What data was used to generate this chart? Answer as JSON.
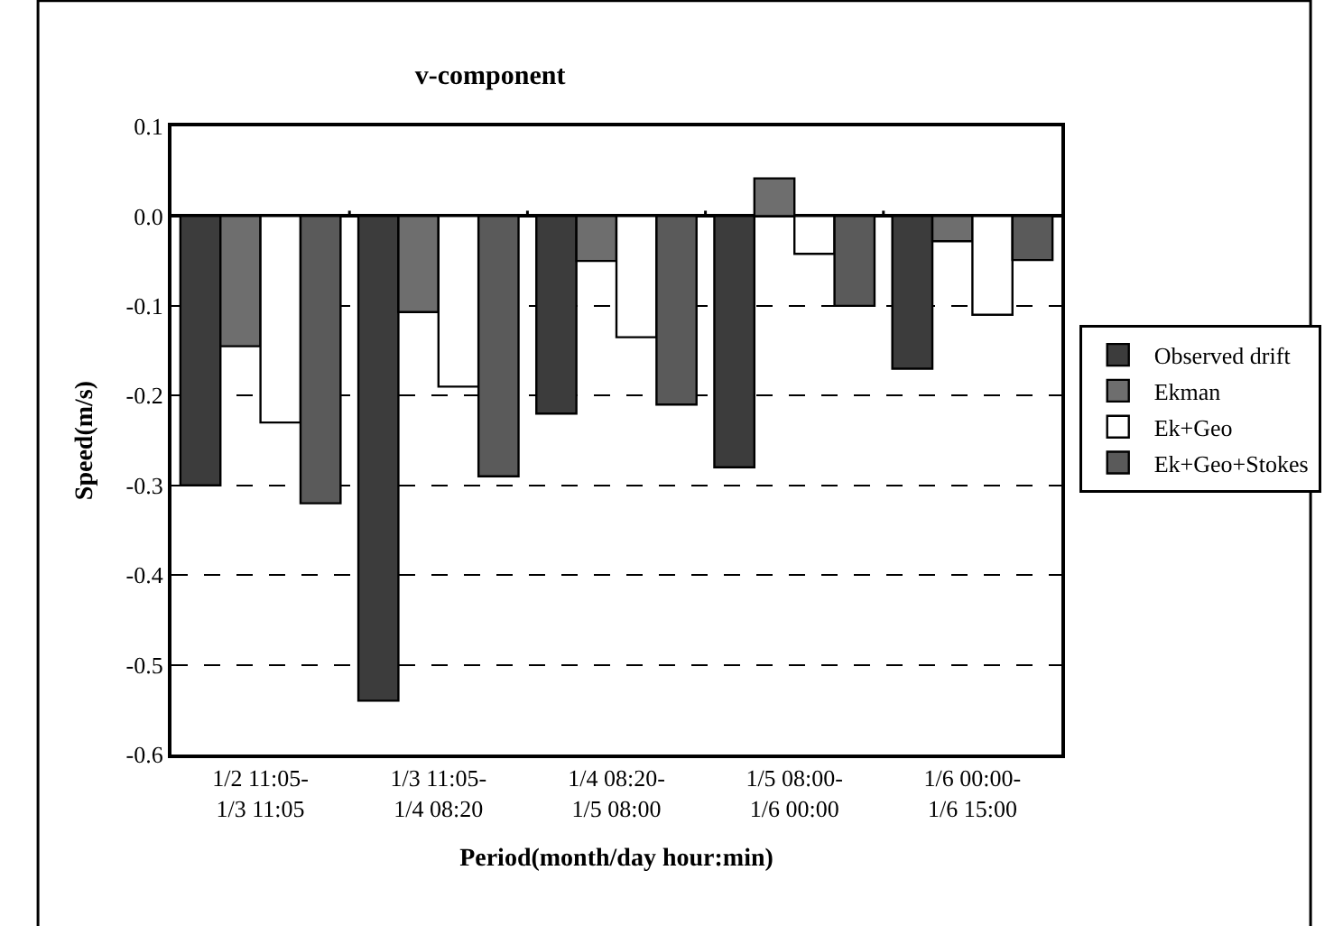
{
  "chart_data": {
    "type": "bar",
    "title": "v-component",
    "xlabel": "Period(month/day hour:min)",
    "ylabel": "Speed(m/s)",
    "categories": [
      "1/2 11:05-\n1/3 11:05",
      "1/3 11:05-\n1/4 08:20",
      "1/4 08:20-\n1/5 08:00",
      "1/5 08:00-\n1/6 00:00",
      "1/6 00:00-\n1/6 15:00"
    ],
    "series": [
      {
        "name": "Observed drift",
        "color": "#3c3c3c",
        "values": [
          -0.3,
          -0.54,
          -0.22,
          -0.28,
          -0.17
        ]
      },
      {
        "name": "Ekman",
        "color": "#6e6e6e",
        "values": [
          -0.145,
          -0.107,
          -0.05,
          0.042,
          -0.028
        ]
      },
      {
        "name": "Ek+Geo",
        "color": "#ffffff",
        "values": [
          -0.23,
          -0.19,
          -0.135,
          -0.042,
          -0.11
        ]
      },
      {
        "name": "Ek+Geo+Stokes",
        "color": "#5a5a5a",
        "values": [
          -0.32,
          -0.29,
          -0.21,
          -0.1,
          -0.049
        ]
      }
    ],
    "ylim": [
      -0.6,
      0.1
    ],
    "yticks": [
      {
        "value": -0.6,
        "label": "-0.6"
      },
      {
        "value": -0.5,
        "label": "-0.5"
      },
      {
        "value": -0.4,
        "label": "-0.4"
      },
      {
        "value": -0.3,
        "label": "-0.3"
      },
      {
        "value": -0.2,
        "label": "-0.2"
      },
      {
        "value": -0.1,
        "label": "-0.1"
      },
      {
        "value": 0,
        "label": "0.0"
      },
      {
        "value": 0.1,
        "label": "0.1"
      }
    ],
    "grid": "y",
    "line_style": "dashed",
    "legend": "right"
  }
}
